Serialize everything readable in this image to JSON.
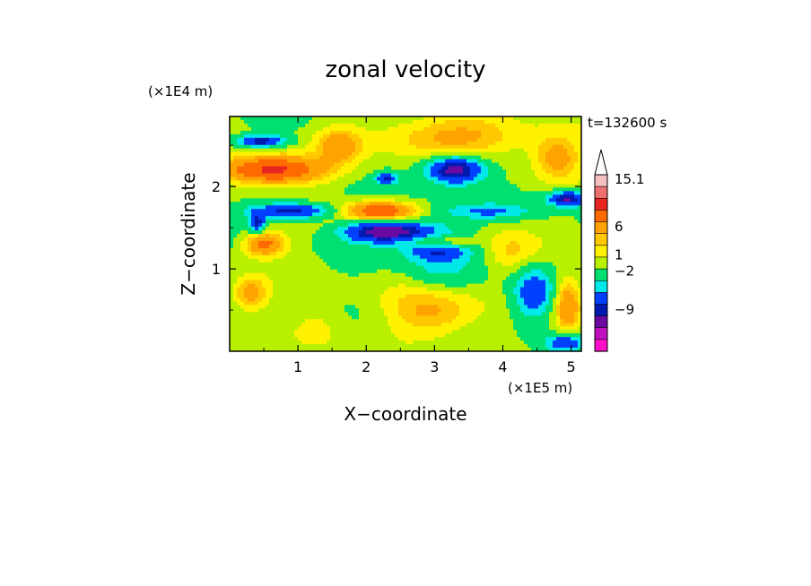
{
  "chart_data": {
    "type": "heatmap",
    "title": "zonal velocity",
    "xlabel": "X−coordinate",
    "ylabel": "Z−coordinate",
    "x_unit": "(×1E5 m)",
    "y_unit": "(×1E4 m)",
    "time_label": "t=132600 s",
    "xlim": [
      0,
      5.15
    ],
    "ylim": [
      0,
      2.85
    ],
    "x_ticks": [
      "1",
      "2",
      "3",
      "4",
      "5"
    ],
    "x_tick_values": [
      1,
      2,
      3,
      4,
      5
    ],
    "y_ticks": [
      "1",
      "2"
    ],
    "y_tick_values": [
      1,
      2
    ],
    "colorbar": {
      "labels": [
        "15.1",
        "6",
        "1",
        "−2",
        "−9"
      ],
      "label_values": [
        15.1,
        6,
        1,
        -2,
        -9
      ],
      "colors_top_to_bottom": [
        "#ffffff",
        "#f5c0c0",
        "#ec7070",
        "#e8251f",
        "#ff6a00",
        "#ffa300",
        "#ffc800",
        "#fff200",
        "#b8f000",
        "#00e070",
        "#00e8e8",
        "#0040ff",
        "#001ab0",
        "#6a0aa0",
        "#c010c0",
        "#ff10c8"
      ],
      "extend_max_arrow": true
    },
    "features": [
      {
        "kind": "neg",
        "x": 3.3,
        "z": 2.2,
        "ax": 0.4,
        "az": 0.16,
        "v": -8
      },
      {
        "kind": "neg",
        "x": 2.3,
        "z": 1.45,
        "ax": 0.6,
        "az": 0.13,
        "v": -8
      },
      {
        "kind": "neg",
        "x": 3.05,
        "z": 1.25,
        "ax": 0.45,
        "az": 0.12,
        "v": -4
      },
      {
        "kind": "neg",
        "x": 0.9,
        "z": 1.7,
        "ax": 0.6,
        "az": 0.09,
        "v": -6
      },
      {
        "kind": "neg",
        "x": 0.45,
        "z": 2.55,
        "ax": 0.35,
        "az": 0.07,
        "v": -6
      },
      {
        "kind": "neg",
        "x": 4.95,
        "z": 1.85,
        "ax": 0.28,
        "az": 0.09,
        "v": -7
      },
      {
        "kind": "neg",
        "x": 2.3,
        "z": 2.1,
        "ax": 0.15,
        "az": 0.07,
        "v": -5
      },
      {
        "kind": "neg",
        "x": 3.8,
        "z": 1.7,
        "ax": 0.6,
        "az": 0.09,
        "v": -3
      },
      {
        "kind": "neg",
        "x": 0.4,
        "z": 1.55,
        "ax": 0.12,
        "az": 0.1,
        "v": -6
      },
      {
        "kind": "neg",
        "x": 4.45,
        "z": 0.7,
        "ax": 0.3,
        "az": 0.3,
        "v": -5
      },
      {
        "kind": "neg",
        "x": 3.05,
        "z": 1.1,
        "ax": 0.5,
        "az": 0.55,
        "v": -2.5
      },
      {
        "kind": "neg",
        "x": 4.9,
        "z": 0.1,
        "ax": 0.25,
        "az": 0.1,
        "v": -5
      },
      {
        "kind": "pos",
        "x": 0.6,
        "z": 2.2,
        "ax": 0.75,
        "az": 0.17,
        "v": 7
      },
      {
        "kind": "pos",
        "x": 3.3,
        "z": 2.6,
        "ax": 1.3,
        "az": 0.25,
        "v": 3
      },
      {
        "kind": "pos",
        "x": 2.2,
        "z": 1.7,
        "ax": 0.55,
        "az": 0.12,
        "v": 6
      },
      {
        "kind": "pos",
        "x": 3.05,
        "z": 1.32,
        "ax": 0.45,
        "az": 0.08,
        "v": 5
      },
      {
        "kind": "pos",
        "x": 0.5,
        "z": 1.3,
        "ax": 0.3,
        "az": 0.15,
        "v": 5
      },
      {
        "kind": "pos",
        "x": 3.0,
        "z": 0.5,
        "ax": 0.65,
        "az": 0.35,
        "v": 3.5
      },
      {
        "kind": "pos",
        "x": 1.6,
        "z": 2.5,
        "ax": 0.3,
        "az": 0.2,
        "v": 3
      },
      {
        "kind": "pos",
        "x": 0.3,
        "z": 0.7,
        "ax": 0.25,
        "az": 0.2,
        "v": 3.5
      },
      {
        "kind": "pos",
        "x": 4.95,
        "z": 0.55,
        "ax": 0.2,
        "az": 0.35,
        "v": 4
      },
      {
        "kind": "pos",
        "x": 4.8,
        "z": 2.35,
        "ax": 0.35,
        "az": 0.25,
        "v": 3
      },
      {
        "kind": "pos",
        "x": 1.3,
        "z": 0.3,
        "ax": 0.4,
        "az": 0.3,
        "v": 1.5
      },
      {
        "kind": "pos",
        "x": 4.1,
        "z": 1.2,
        "ax": 0.4,
        "az": 0.3,
        "v": 2
      }
    ]
  }
}
